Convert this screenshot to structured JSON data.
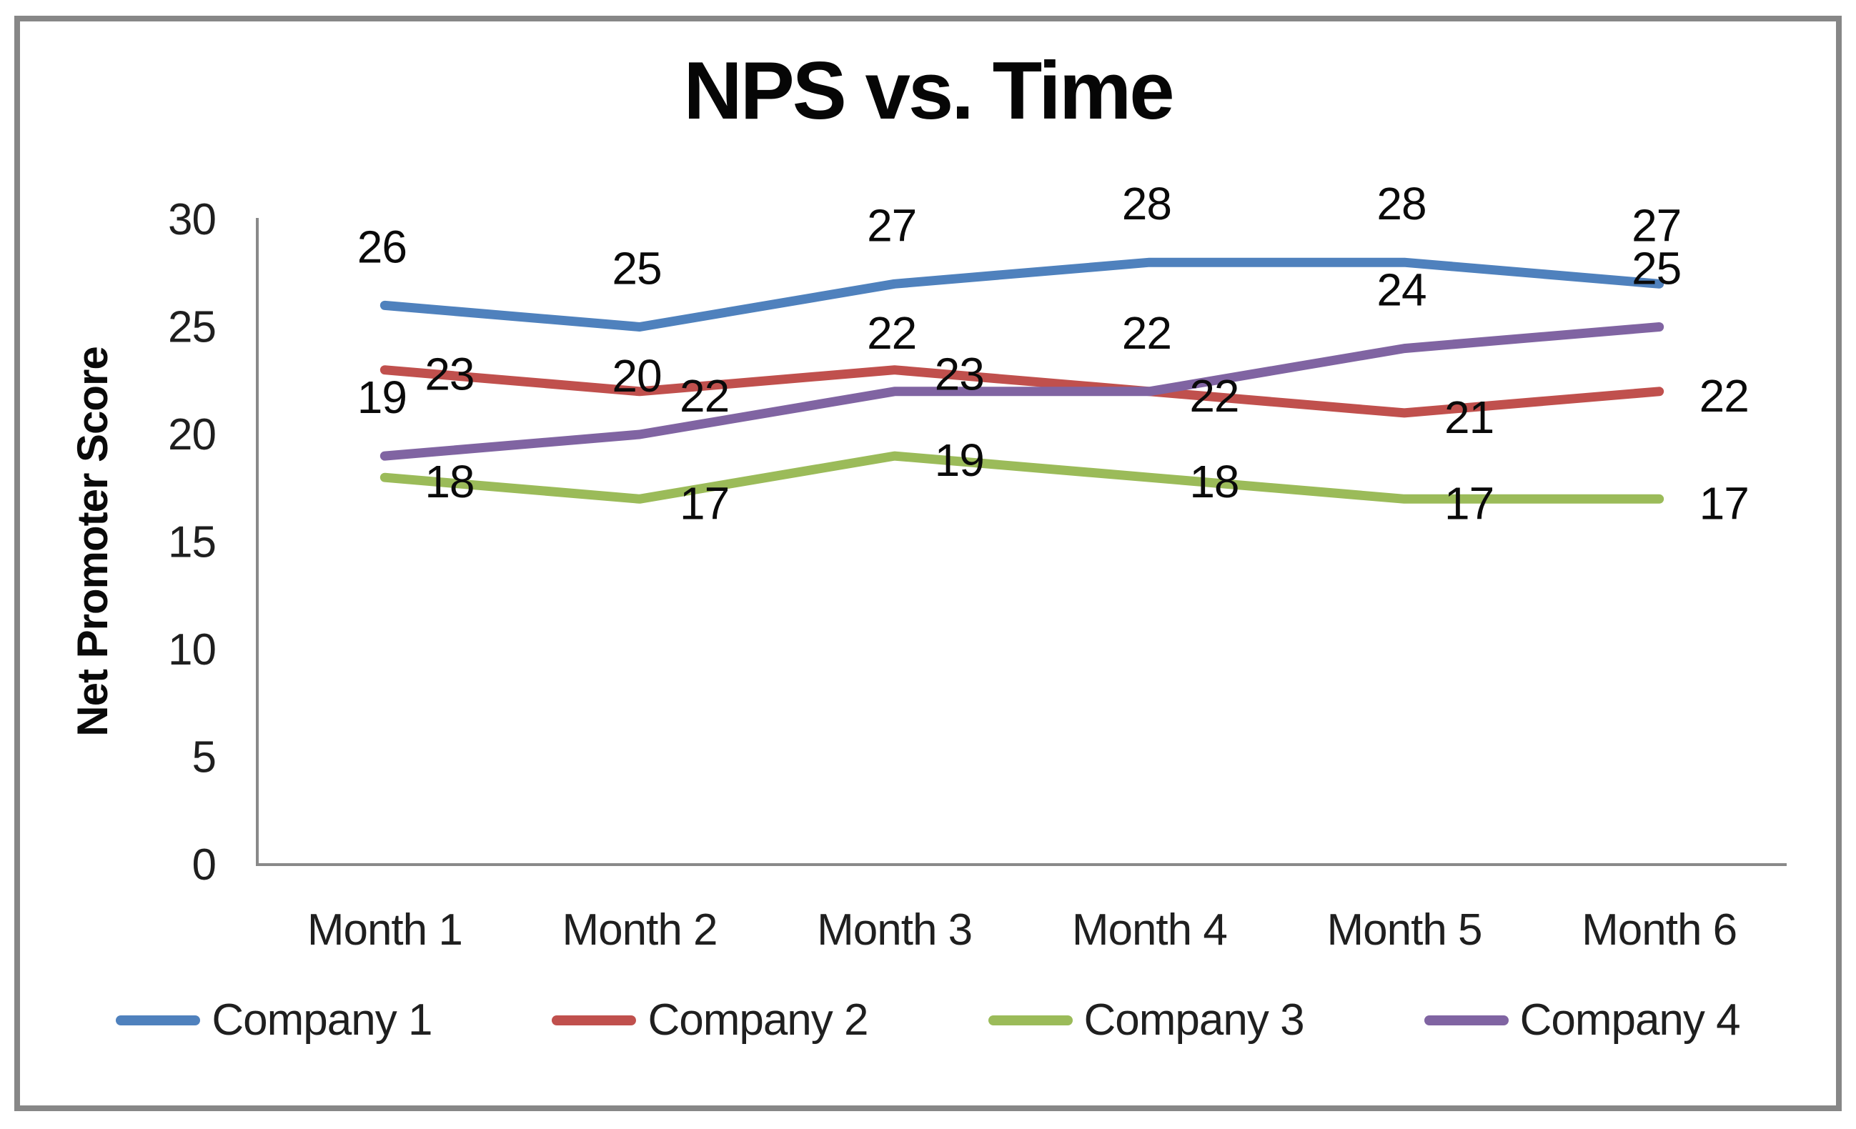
{
  "chart_data": {
    "type": "line",
    "title": "NPS vs. Time",
    "xlabel": "",
    "ylabel": "Net Promoter Score",
    "categories": [
      "Month 1",
      "Month 2",
      "Month 3",
      "Month 4",
      "Month 5",
      "Month 6"
    ],
    "series": [
      {
        "name": "Company 1",
        "color": "#4F81BD",
        "values": [
          26,
          25,
          27,
          28,
          28,
          27
        ],
        "label_placement": "above"
      },
      {
        "name": "Company 2",
        "color": "#C0504D",
        "values": [
          23,
          22,
          23,
          22,
          21,
          22
        ],
        "label_placement": "right"
      },
      {
        "name": "Company 3",
        "color": "#9BBB59",
        "values": [
          18,
          17,
          19,
          18,
          17,
          17
        ],
        "label_placement": "right"
      },
      {
        "name": "Company 4",
        "color": "#8064A2",
        "values": [
          19,
          20,
          22,
          22,
          24,
          25
        ],
        "label_placement": "above"
      }
    ],
    "y_ticks": [
      0,
      5,
      10,
      15,
      20,
      25,
      30
    ],
    "ylim": [
      0,
      30
    ],
    "grid": "off",
    "data_labels": true,
    "legend_position": "bottom",
    "axis_color": "#898989",
    "tick_text_color": "#1f1f1f",
    "data_label_color": "#0a0a0a",
    "frame_color": "#878787"
  }
}
